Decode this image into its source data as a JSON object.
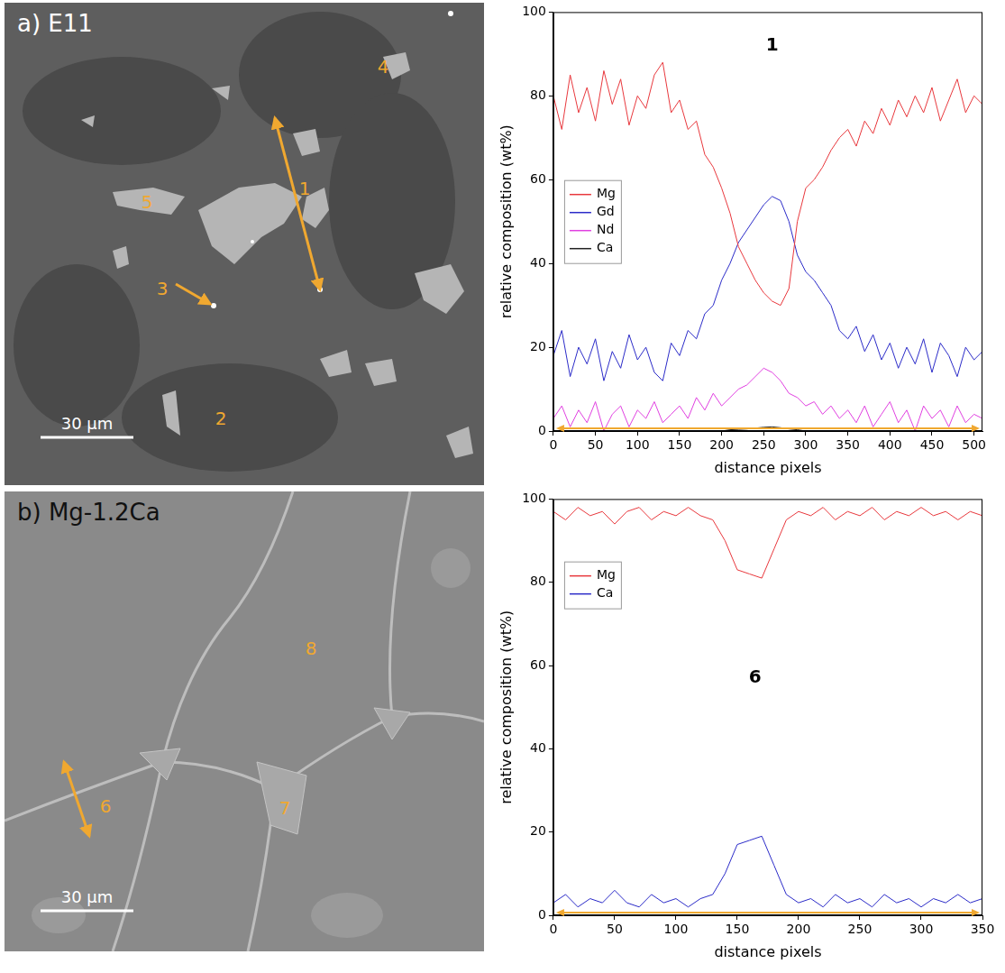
{
  "figure_panels": [
    {
      "title": "a) E11",
      "scale_bar": "30 μm",
      "markers": [
        "1",
        "2",
        "3",
        "4",
        "5"
      ]
    },
    {
      "title": "b) Mg-1.2Ca",
      "scale_bar": "30 μm",
      "markers": [
        "6",
        "7",
        "8"
      ]
    }
  ],
  "chart_data": [
    {
      "type": "line",
      "annotation": "1",
      "x_label": "distance pixels",
      "y_label": "relative composition (wt%)",
      "x": [
        0,
        10,
        20,
        30,
        40,
        50,
        60,
        70,
        80,
        90,
        100,
        110,
        120,
        130,
        140,
        150,
        160,
        170,
        180,
        190,
        200,
        210,
        220,
        230,
        240,
        250,
        260,
        270,
        280,
        290,
        300,
        310,
        320,
        330,
        340,
        350,
        360,
        370,
        380,
        390,
        400,
        410,
        420,
        430,
        440,
        450,
        460,
        470,
        480,
        490,
        500,
        510
      ],
      "series": [
        {
          "name": "Mg",
          "color": "#e8383d",
          "values": [
            80,
            72,
            85,
            76,
            82,
            74,
            86,
            78,
            84,
            73,
            80,
            77,
            85,
            88,
            76,
            79,
            72,
            74,
            66,
            63,
            58,
            52,
            44,
            40,
            36,
            33,
            31,
            30,
            34,
            50,
            58,
            60,
            63,
            67,
            70,
            72,
            68,
            74,
            71,
            77,
            73,
            79,
            75,
            80,
            76,
            82,
            74,
            79,
            84,
            76,
            80,
            78
          ]
        },
        {
          "name": "Gd",
          "color": "#2b2bc8",
          "values": [
            18,
            24,
            13,
            20,
            16,
            22,
            12,
            19,
            15,
            23,
            17,
            20,
            14,
            12,
            21,
            18,
            24,
            22,
            28,
            30,
            36,
            40,
            45,
            48,
            51,
            54,
            56,
            55,
            50,
            42,
            38,
            36,
            33,
            30,
            24,
            22,
            25,
            19,
            23,
            17,
            21,
            15,
            20,
            16,
            22,
            14,
            21,
            18,
            13,
            20,
            17,
            19
          ]
        },
        {
          "name": "Nd",
          "color": "#e040e0",
          "values": [
            3,
            6,
            1,
            5,
            2,
            7,
            0,
            4,
            6,
            1,
            5,
            3,
            7,
            2,
            4,
            6,
            3,
            8,
            5,
            9,
            6,
            8,
            10,
            11,
            13,
            15,
            14,
            12,
            9,
            8,
            6,
            7,
            4,
            6,
            3,
            5,
            2,
            6,
            1,
            4,
            7,
            2,
            5,
            0,
            6,
            3,
            5,
            1,
            6,
            2,
            4,
            3
          ]
        },
        {
          "name": "Ca",
          "color": "#222222",
          "values": [
            0,
            0,
            0,
            0,
            0,
            0,
            0,
            0,
            0,
            0,
            0,
            0,
            0,
            0,
            0,
            0,
            0,
            0,
            0,
            0,
            0,
            0.3,
            0.4,
            0.5,
            0.7,
            0.9,
            1,
            0.8,
            0.5,
            0.3,
            0,
            0,
            0,
            0,
            0,
            0,
            0,
            0,
            0,
            0,
            0,
            0,
            0,
            0,
            0,
            0,
            0,
            0,
            0,
            0,
            0,
            0
          ]
        }
      ],
      "xlim": [
        0,
        510
      ],
      "xticks": [
        0,
        50,
        100,
        150,
        200,
        250,
        300,
        350,
        400,
        450,
        500
      ],
      "ylim": [
        0,
        100
      ],
      "yticks": [
        0,
        20,
        40,
        60,
        80,
        100
      ],
      "grid": false,
      "legend": "left"
    },
    {
      "type": "line",
      "annotation": "6",
      "x_label": "distance pixels",
      "y_label": "relative composition (wt%)",
      "x": [
        0,
        10,
        20,
        30,
        40,
        50,
        60,
        70,
        80,
        90,
        100,
        110,
        120,
        130,
        140,
        150,
        160,
        170,
        180,
        190,
        200,
        210,
        220,
        230,
        240,
        250,
        260,
        270,
        280,
        290,
        300,
        310,
        320,
        330,
        340,
        350
      ],
      "series": [
        {
          "name": "Mg",
          "color": "#e8383d",
          "values": [
            97,
            95,
            98,
            96,
            97,
            94,
            97,
            98,
            95,
            97,
            96,
            98,
            96,
            95,
            90,
            83,
            82,
            81,
            88,
            95,
            97,
            96,
            98,
            95,
            97,
            96,
            98,
            95,
            97,
            96,
            98,
            96,
            97,
            95,
            97,
            96
          ]
        },
        {
          "name": "Ca",
          "color": "#2b2bc8",
          "values": [
            3,
            5,
            2,
            4,
            3,
            6,
            3,
            2,
            5,
            3,
            4,
            2,
            4,
            5,
            10,
            17,
            18,
            19,
            12,
            5,
            3,
            4,
            2,
            5,
            3,
            4,
            2,
            5,
            3,
            4,
            2,
            4,
            3,
            5,
            3,
            4
          ]
        }
      ],
      "xlim": [
        0,
        350
      ],
      "xticks": [
        0,
        50,
        100,
        150,
        200,
        250,
        300,
        350
      ],
      "ylim": [
        0,
        100
      ],
      "yticks": [
        0,
        20,
        40,
        60,
        80,
        100
      ],
      "grid": false,
      "legend": "upper left"
    }
  ]
}
